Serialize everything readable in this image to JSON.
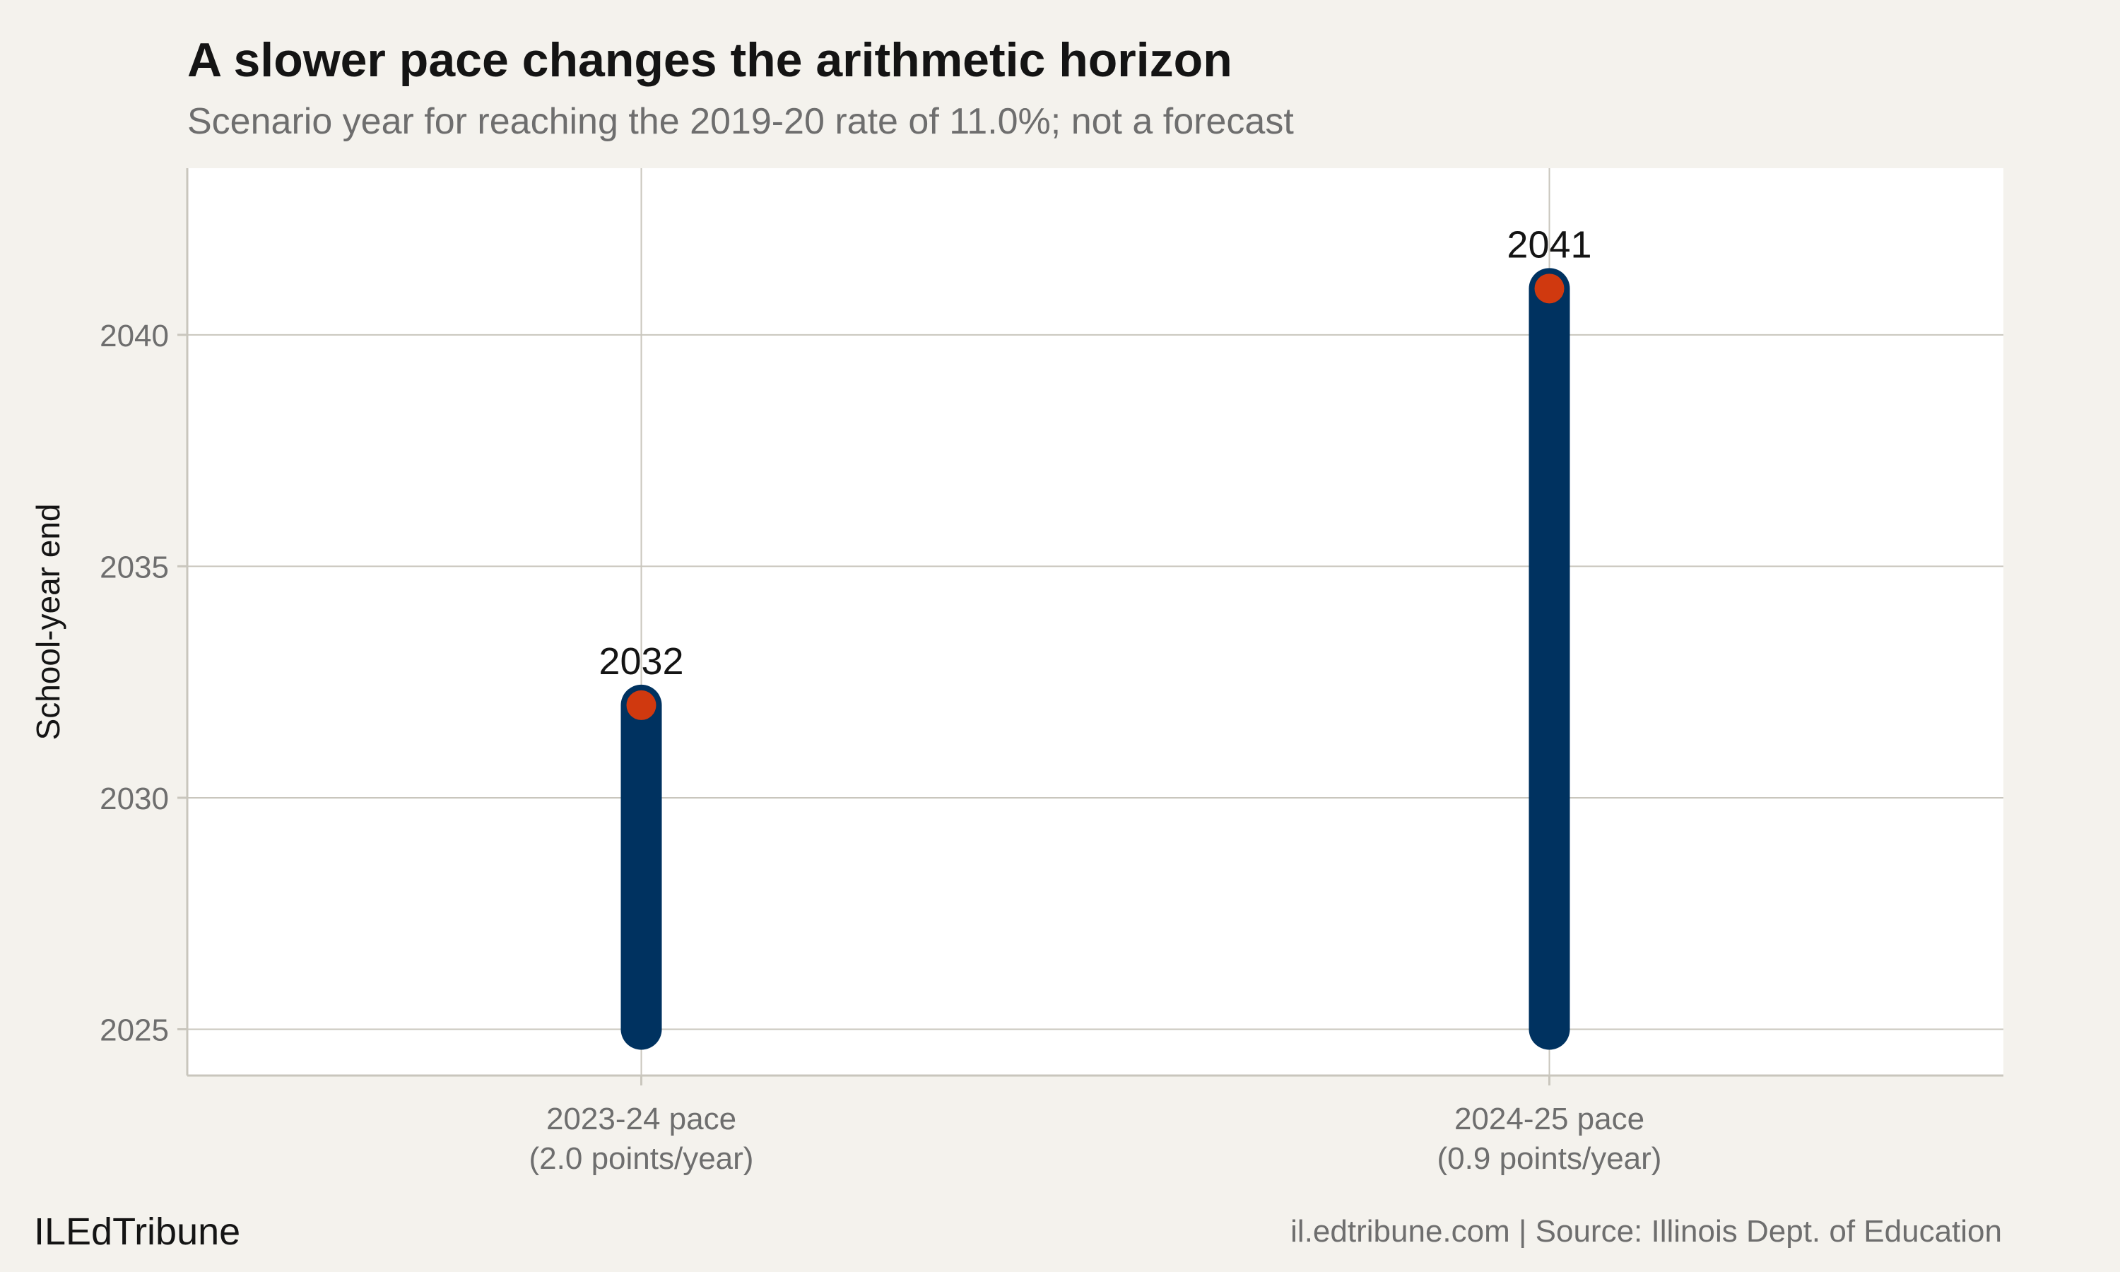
{
  "header": {
    "title": "A slower pace changes the arithmetic horizon",
    "subtitle": "Scenario year for reaching the 2019-20 rate of 11.0%; not a forecast"
  },
  "footer": {
    "brand": "ILEdTribune",
    "source": "il.edtribune.com | Source: Illinois Dept. of Education"
  },
  "colors": {
    "background": "#f4f2ed",
    "panel": "#ffffff",
    "bar": "#003260",
    "point": "#d0390f",
    "grid": "#c9c6bd"
  },
  "chart_data": {
    "type": "bar",
    "categories": [
      [
        "2023-24 pace",
        "(2.0 points/year)"
      ],
      [
        "2024-25 pace",
        "(0.9 points/year)"
      ]
    ],
    "start_values": [
      2025,
      2025
    ],
    "values": [
      2032,
      2041
    ],
    "data_labels": [
      "2032",
      "2041"
    ],
    "title": "A slower pace changes the arithmetic horizon",
    "subtitle": "Scenario year for reaching the 2019-20 rate of 11.0%; not a forecast",
    "xlabel": "",
    "ylabel": "School-year end",
    "yticks": [
      2025,
      2030,
      2035,
      2040
    ],
    "ylim": [
      2024,
      2043.6
    ],
    "grid": true,
    "legend": "none"
  }
}
